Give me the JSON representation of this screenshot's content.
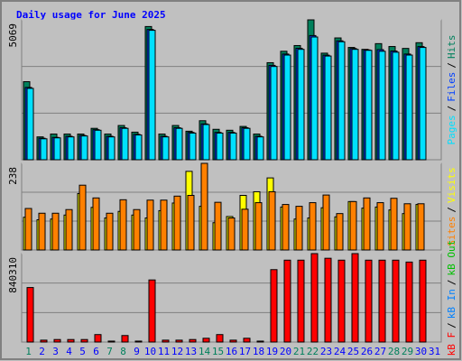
{
  "legend_separator": "/",
  "chart_data": [
    {
      "type": "bar",
      "title": "Daily usage for June 2025",
      "categories": [
        "1",
        "2",
        "3",
        "4",
        "5",
        "6",
        "7",
        "8",
        "9",
        "10",
        "11",
        "12",
        "13",
        "14",
        "15",
        "16",
        "17",
        "18",
        "19",
        "20",
        "21",
        "22",
        "23",
        "24",
        "25",
        "26",
        "27",
        "28",
        "29",
        "30",
        "31"
      ],
      "ylim": [
        0,
        5069
      ],
      "yticks": [
        5069
      ],
      "grid_divisions": 3,
      "series": [
        {
          "name": "Pages",
          "color": "#00e0ff",
          "values": [
            2586,
            759,
            793,
            828,
            862,
            1069,
            828,
            1138,
            897,
            4690,
            828,
            1138,
            966,
            1276,
            966,
            966,
            1138,
            828,
            3379,
            3793,
            4000,
            4448,
            3758,
            4276,
            4000,
            3965,
            3931,
            3896,
            3793,
            4069,
            0
          ]
        },
        {
          "name": "Files",
          "color": "#0040ff",
          "values": [
            2620,
            780,
            810,
            850,
            880,
            1090,
            850,
            1160,
            920,
            4720,
            850,
            1160,
            990,
            1300,
            990,
            990,
            1160,
            850,
            3420,
            3830,
            4040,
            4500,
            3790,
            4310,
            4030,
            3980,
            3990,
            3940,
            3830,
            4100,
            0
          ]
        },
        {
          "name": "Hits",
          "color": "#00805c",
          "values": [
            2828,
            828,
            931,
            931,
            931,
            1138,
            931,
            1241,
            1000,
            4827,
            931,
            1241,
            1034,
            1414,
            1103,
            1069,
            1207,
            931,
            3517,
            3931,
            4138,
            5069,
            3862,
            4414,
            4069,
            4000,
            4207,
            4103,
            4034,
            4241,
            0
          ]
        }
      ]
    },
    {
      "type": "bar",
      "categories": [
        "1",
        "2",
        "3",
        "4",
        "5",
        "6",
        "7",
        "8",
        "9",
        "10",
        "11",
        "12",
        "13",
        "14",
        "15",
        "16",
        "17",
        "18",
        "19",
        "20",
        "21",
        "22",
        "23",
        "24",
        "25",
        "26",
        "27",
        "28",
        "29",
        "30",
        "31"
      ],
      "ylim": [
        0,
        238
      ],
      "yticks": [
        238
      ],
      "grid_divisions": 3,
      "series": [
        {
          "name": "Sites",
          "color": "#ff8000",
          "values": [
            114,
            101,
            101,
            111,
            178,
            143,
            101,
            138,
            111,
            137,
            137,
            148,
            150,
            238,
            131,
            88,
            112,
            130,
            160,
            125,
            120,
            130,
            151,
            100,
            133,
            143,
            130,
            142,
            127,
            127,
            0
          ]
        },
        {
          "name": "Visits",
          "color": "#ffff00",
          "values": [
            90,
            83,
            85,
            96,
            155,
            117,
            88,
            106,
            96,
            88,
            108,
            129,
            216,
            120,
            75,
            92,
            150,
            160,
            198,
            118,
            85,
            88,
            116,
            91,
            133,
            115,
            118,
            110,
            100,
            125,
            0
          ]
        }
      ]
    },
    {
      "type": "bar",
      "categories": [
        "1",
        "2",
        "3",
        "4",
        "5",
        "6",
        "7",
        "8",
        "9",
        "10",
        "11",
        "12",
        "13",
        "14",
        "15",
        "16",
        "17",
        "18",
        "19",
        "20",
        "21",
        "22",
        "23",
        "24",
        "25",
        "26",
        "27",
        "28",
        "29",
        "30",
        "31"
      ],
      "category_colors": [
        "#00805c",
        "#0000ff",
        "#0000ff",
        "#0000ff",
        "#0000ff",
        "#0000ff",
        "#00805c",
        "#00805c",
        "#0000ff",
        "#0000ff",
        "#0000ff",
        "#0000ff",
        "#0000ff",
        "#00805c",
        "#00805c",
        "#0000ff",
        "#0000ff",
        "#0000ff",
        "#0000ff",
        "#0000ff",
        "#00805c",
        "#00805c",
        "#0000ff",
        "#0000ff",
        "#0000ff",
        "#0000ff",
        "#0000ff",
        "#00805c",
        "#00805c",
        "#0000ff",
        "#0000ff"
      ],
      "ylim": [
        0,
        840310
      ],
      "yticks": [
        840310
      ],
      "grid_divisions": 3,
      "series": [
        {
          "name": "kB F",
          "color": "#ff0000",
          "values": [
            518000,
            18000,
            24000,
            24000,
            24000,
            71000,
            9000,
            62000,
            9000,
            590000,
            18000,
            18000,
            24000,
            36000,
            71000,
            18000,
            36000,
            9000,
            688000,
            778000,
            778000,
            840310,
            796000,
            778000,
            840310,
            778000,
            778000,
            778000,
            760000,
            778000,
            0
          ]
        },
        {
          "name": "kB In",
          "color": "#0080ff",
          "values": [
            0,
            0,
            0,
            0,
            0,
            0,
            0,
            0,
            0,
            0,
            0,
            0,
            0,
            0,
            0,
            0,
            0,
            0,
            0,
            0,
            0,
            0,
            0,
            0,
            0,
            0,
            0,
            0,
            0,
            0,
            0
          ]
        },
        {
          "name": "kB Out",
          "color": "#00c000",
          "values": [
            0,
            0,
            0,
            0,
            0,
            0,
            0,
            0,
            0,
            0,
            0,
            0,
            0,
            0,
            0,
            0,
            0,
            0,
            0,
            0,
            0,
            0,
            0,
            0,
            0,
            0,
            0,
            0,
            0,
            0,
            0
          ]
        }
      ]
    }
  ]
}
